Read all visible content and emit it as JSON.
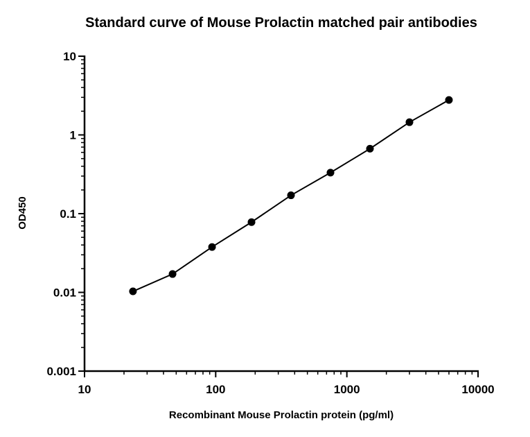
{
  "chart_data": {
    "type": "scatter",
    "title": "Standard curve of Mouse Prolactin matched pair antibodies",
    "xlabel": "Recombinant Mouse Prolactin protein (pg/ml)",
    "ylabel": "OD450",
    "x_scale": "log",
    "y_scale": "log",
    "xlim": [
      10,
      10000
    ],
    "ylim": [
      0.001,
      10
    ],
    "x_ticks": [
      10,
      100,
      1000,
      10000
    ],
    "x_tick_labels": [
      "10",
      "100",
      "1000",
      "10000"
    ],
    "y_ticks": [
      0.001,
      0.01,
      0.1,
      1,
      10
    ],
    "y_tick_labels": [
      "0.001",
      "0.01",
      "0.1",
      "1",
      "10"
    ],
    "grid": false,
    "legend": "none",
    "series": [
      {
        "points": [
          {
            "x": 23.4,
            "y": 0.0103
          },
          {
            "x": 46.9,
            "y": 0.0171
          },
          {
            "x": 93.8,
            "y": 0.0377
          },
          {
            "x": 187.5,
            "y": 0.078
          },
          {
            "x": 375,
            "y": 0.171
          },
          {
            "x": 750,
            "y": 0.332
          },
          {
            "x": 1500,
            "y": 0.668
          },
          {
            "x": 3000,
            "y": 1.45
          },
          {
            "x": 6000,
            "y": 2.78
          }
        ],
        "fit_line": true,
        "color": "#000000"
      }
    ]
  }
}
